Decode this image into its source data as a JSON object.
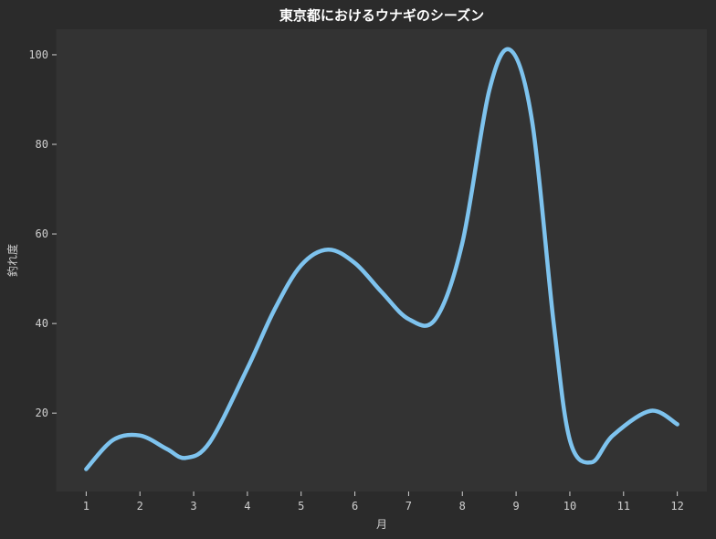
{
  "chart_data": {
    "type": "line",
    "title": "東京都におけるウナギのシーズン",
    "xlabel": "月",
    "ylabel": "釣れ度",
    "x": [
      1,
      2,
      3,
      4,
      5,
      6,
      7,
      8,
      9,
      10,
      11,
      12
    ],
    "x_ticks": [
      "1",
      "2",
      "3",
      "4",
      "5",
      "6",
      "7",
      "8",
      "9",
      "10",
      "11",
      "12"
    ],
    "y_ticks": [
      "20",
      "40",
      "60",
      "80",
      "100"
    ],
    "xlim": [
      0.45,
      12.55
    ],
    "ylim": [
      2.5,
      105.7
    ],
    "grid": false,
    "series": [
      {
        "color": "#7ec3ee",
        "x": [
          1.0,
          1.5,
          2.0,
          2.5,
          2.85,
          3.3,
          4.0,
          4.5,
          5.0,
          5.5,
          6.0,
          6.5,
          7.0,
          7.5,
          8.0,
          8.5,
          8.9,
          9.3,
          9.7,
          10.0,
          10.4,
          10.8,
          11.5,
          12.0
        ],
        "y": [
          7.5,
          14.0,
          15.0,
          12.0,
          10.0,
          13.5,
          30.0,
          43.0,
          53.0,
          56.5,
          53.5,
          47.0,
          41.0,
          41.0,
          58.0,
          92.0,
          101.0,
          85.0,
          40.0,
          14.0,
          9.0,
          15.0,
          20.5,
          17.5
        ]
      }
    ]
  },
  "style": {
    "figure_bg": "#2b2b2b",
    "plot_bg": "#333333",
    "text_color": "#cfcfcf",
    "title_color": "#ffffff"
  }
}
